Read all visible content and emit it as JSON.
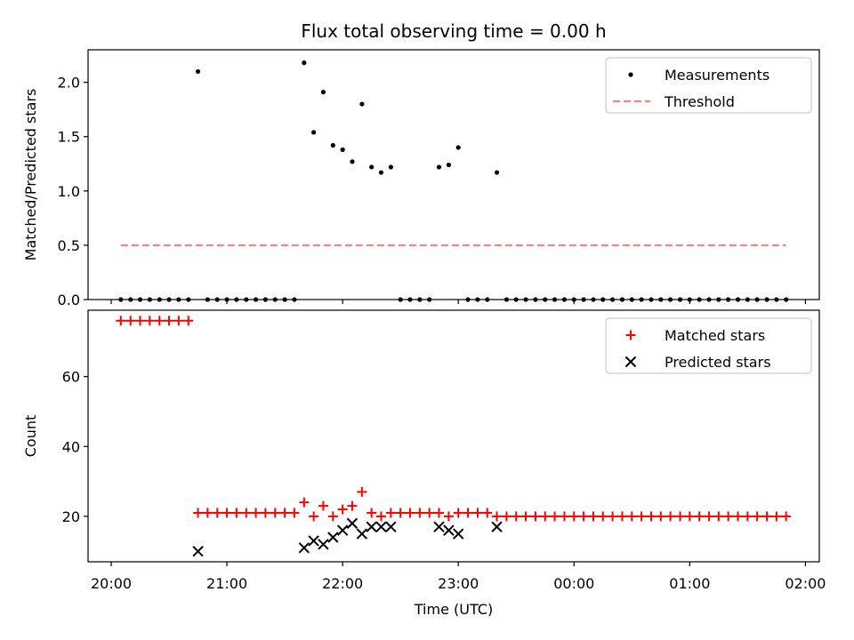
{
  "chart_data": [
    {
      "type": "scatter",
      "title": "Flux total observing time = 0.00 h",
      "ylabel": "Matched/Predicted stars",
      "ylim": [
        0,
        2.3
      ],
      "yticks": [
        "0.0",
        "0.5",
        "1.0",
        "1.5",
        "2.0"
      ],
      "ytick_values": [
        0,
        0.5,
        1.0,
        1.5,
        2.0
      ],
      "legend_position": "top-right",
      "series": [
        {
          "name": "Measurements",
          "style": "points",
          "color": "#000000",
          "points": [
            [
              20.083,
              0
            ],
            [
              20.167,
              0
            ],
            [
              20.25,
              0
            ],
            [
              20.333,
              0
            ],
            [
              20.417,
              0
            ],
            [
              20.5,
              0
            ],
            [
              20.583,
              0
            ],
            [
              20.667,
              0
            ],
            [
              20.75,
              2.1
            ],
            [
              20.833,
              0
            ],
            [
              20.917,
              0
            ],
            [
              21.0,
              0
            ],
            [
              21.083,
              0
            ],
            [
              21.167,
              0
            ],
            [
              21.25,
              0
            ],
            [
              21.333,
              0
            ],
            [
              21.417,
              0
            ],
            [
              21.5,
              0
            ],
            [
              21.583,
              0
            ],
            [
              21.667,
              2.18
            ],
            [
              21.75,
              1.54
            ],
            [
              21.833,
              1.91
            ],
            [
              21.917,
              1.42
            ],
            [
              22.0,
              1.38
            ],
            [
              22.083,
              1.27
            ],
            [
              22.167,
              1.8
            ],
            [
              22.25,
              1.22
            ],
            [
              22.333,
              1.17
            ],
            [
              22.417,
              1.22
            ],
            [
              22.5,
              0
            ],
            [
              22.583,
              0
            ],
            [
              22.667,
              0
            ],
            [
              22.75,
              0
            ],
            [
              22.833,
              1.22
            ],
            [
              22.917,
              1.24
            ],
            [
              23.0,
              1.4
            ],
            [
              23.083,
              0
            ],
            [
              23.167,
              0
            ],
            [
              23.25,
              0
            ],
            [
              23.333,
              1.17
            ],
            [
              23.417,
              0
            ],
            [
              23.5,
              0
            ],
            [
              23.583,
              0
            ],
            [
              23.667,
              0
            ],
            [
              23.75,
              0
            ],
            [
              23.833,
              0
            ],
            [
              23.917,
              0
            ],
            [
              24.0,
              0
            ],
            [
              24.083,
              0
            ],
            [
              24.167,
              0
            ],
            [
              24.25,
              0
            ],
            [
              24.333,
              0
            ],
            [
              24.417,
              0
            ],
            [
              24.5,
              0
            ],
            [
              24.583,
              0
            ],
            [
              24.667,
              0
            ],
            [
              24.75,
              0
            ],
            [
              24.833,
              0
            ],
            [
              24.917,
              0
            ],
            [
              25.0,
              0
            ],
            [
              25.083,
              0
            ],
            [
              25.167,
              0
            ],
            [
              25.25,
              0
            ],
            [
              25.333,
              0
            ],
            [
              25.417,
              0
            ],
            [
              25.5,
              0
            ],
            [
              25.583,
              0
            ],
            [
              25.667,
              0
            ],
            [
              25.75,
              0
            ],
            [
              25.833,
              0
            ]
          ]
        },
        {
          "name": "Threshold",
          "style": "dashed-line",
          "color": "#ff7f7f",
          "points": [
            [
              20.083,
              0.5
            ],
            [
              25.833,
              0.5
            ]
          ]
        }
      ]
    },
    {
      "type": "scatter",
      "xlabel": "Time (UTC)",
      "ylabel": "Count",
      "ylim": [
        7,
        79
      ],
      "yticks": [
        "20",
        "40",
        "60"
      ],
      "ytick_values": [
        20,
        40,
        60
      ],
      "xlim": [
        19.8,
        26.12
      ],
      "xticks": [
        "20:00",
        "21:00",
        "22:00",
        "23:00",
        "00:00",
        "01:00",
        "02:00"
      ],
      "xtick_values": [
        20,
        21,
        22,
        23,
        24,
        25,
        26
      ],
      "legend_position": "top-right",
      "series": [
        {
          "name": "Matched stars",
          "style": "plus",
          "color": "#ff0000",
          "points": [
            [
              20.083,
              76
            ],
            [
              20.167,
              76
            ],
            [
              20.25,
              76
            ],
            [
              20.333,
              76
            ],
            [
              20.417,
              76
            ],
            [
              20.5,
              76
            ],
            [
              20.583,
              76
            ],
            [
              20.667,
              76
            ],
            [
              20.75,
              21
            ],
            [
              20.833,
              21
            ],
            [
              20.917,
              21
            ],
            [
              21.0,
              21
            ],
            [
              21.083,
              21
            ],
            [
              21.167,
              21
            ],
            [
              21.25,
              21
            ],
            [
              21.333,
              21
            ],
            [
              21.417,
              21
            ],
            [
              21.5,
              21
            ],
            [
              21.583,
              21
            ],
            [
              21.667,
              24
            ],
            [
              21.75,
              20
            ],
            [
              21.833,
              23
            ],
            [
              21.917,
              20
            ],
            [
              22.0,
              22
            ],
            [
              22.083,
              23
            ],
            [
              22.167,
              27
            ],
            [
              22.25,
              21
            ],
            [
              22.333,
              20
            ],
            [
              22.417,
              21
            ],
            [
              22.5,
              21
            ],
            [
              22.583,
              21
            ],
            [
              22.667,
              21
            ],
            [
              22.75,
              21
            ],
            [
              22.833,
              21
            ],
            [
              22.917,
              20
            ],
            [
              23.0,
              21
            ],
            [
              23.083,
              21
            ],
            [
              23.167,
              21
            ],
            [
              23.25,
              21
            ],
            [
              23.333,
              20
            ],
            [
              23.417,
              20
            ],
            [
              23.5,
              20
            ],
            [
              23.583,
              20
            ],
            [
              23.667,
              20
            ],
            [
              23.75,
              20
            ],
            [
              23.833,
              20
            ],
            [
              23.917,
              20
            ],
            [
              24.0,
              20
            ],
            [
              24.083,
              20
            ],
            [
              24.167,
              20
            ],
            [
              24.25,
              20
            ],
            [
              24.333,
              20
            ],
            [
              24.417,
              20
            ],
            [
              24.5,
              20
            ],
            [
              24.583,
              20
            ],
            [
              24.667,
              20
            ],
            [
              24.75,
              20
            ],
            [
              24.833,
              20
            ],
            [
              24.917,
              20
            ],
            [
              25.0,
              20
            ],
            [
              25.083,
              20
            ],
            [
              25.167,
              20
            ],
            [
              25.25,
              20
            ],
            [
              25.333,
              20
            ],
            [
              25.417,
              20
            ],
            [
              25.5,
              20
            ],
            [
              25.583,
              20
            ],
            [
              25.667,
              20
            ],
            [
              25.75,
              20
            ],
            [
              25.833,
              20
            ]
          ]
        },
        {
          "name": "Predicted stars",
          "style": "x",
          "color": "#000000",
          "points": [
            [
              20.75,
              10
            ],
            [
              21.667,
              11
            ],
            [
              21.75,
              13
            ],
            [
              21.833,
              12
            ],
            [
              21.917,
              14
            ],
            [
              22.0,
              16
            ],
            [
              22.083,
              18
            ],
            [
              22.167,
              15
            ],
            [
              22.25,
              17
            ],
            [
              22.333,
              17
            ],
            [
              22.417,
              17
            ],
            [
              22.833,
              17
            ],
            [
              22.917,
              16
            ],
            [
              23.0,
              15
            ],
            [
              23.333,
              17
            ]
          ]
        }
      ]
    }
  ]
}
